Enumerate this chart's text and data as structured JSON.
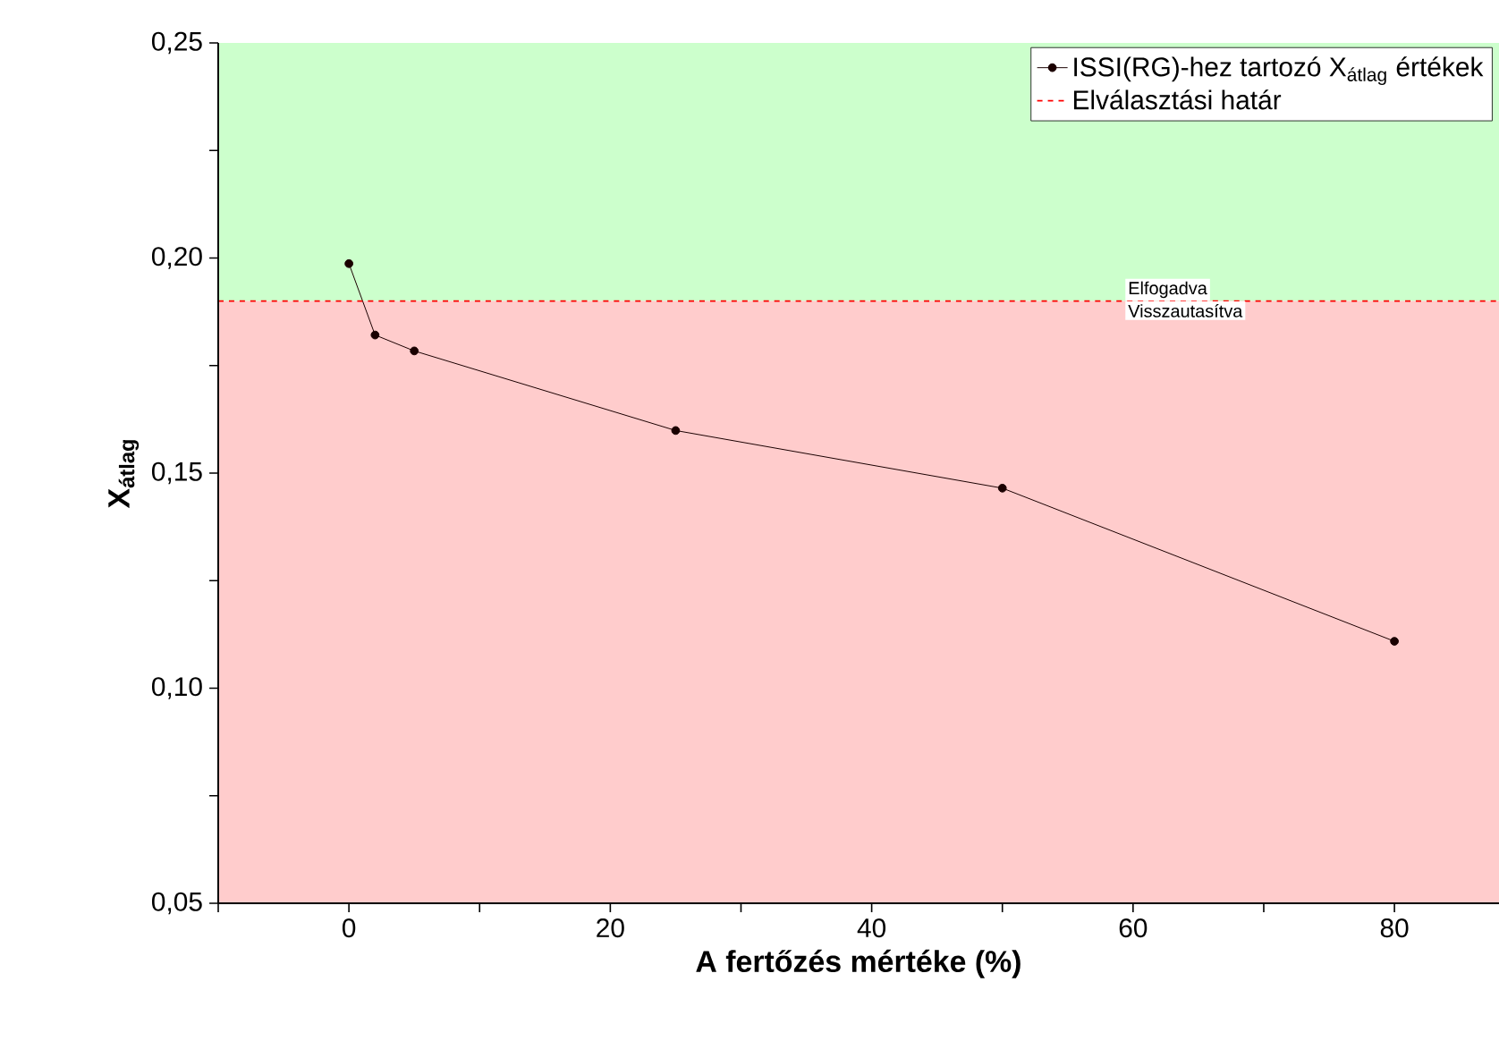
{
  "chart_data": {
    "type": "line",
    "xlabel": "A fertőzés mértéke (%)",
    "ylabel": "X$_{átlag}$",
    "x": [
      0,
      2,
      5,
      25,
      50,
      80
    ],
    "series": [
      {
        "name": "ISSI(RG)-hez tartozó X$_{átlag}$ értékek",
        "color": "#1a0000",
        "values": [
          0.1987,
          0.1821,
          0.1784,
          0.1599,
          0.1465,
          0.1109
        ]
      }
    ],
    "xlim": [
      -10,
      88
    ],
    "ylim": [
      0.05,
      0.25
    ],
    "xticks": [
      {
        "value": -10,
        "label": null
      },
      0,
      {
        "value": 10,
        "label": null
      },
      20,
      {
        "value": 30,
        "label": null
      },
      40,
      {
        "value": 50,
        "label": null
      },
      60,
      {
        "value": 70,
        "label": null
      },
      80
    ],
    "yticks": [
      {
        "value": 0.05,
        "label": "0,05"
      },
      {
        "value": 0.075,
        "label": null
      },
      {
        "value": 0.1,
        "label": "0,10"
      },
      {
        "value": 0.125,
        "label": null
      },
      {
        "value": 0.15,
        "label": "0,15"
      },
      {
        "value": 0.175,
        "label": null
      },
      {
        "value": 0.2,
        "label": "0,20"
      },
      {
        "value": 0.225,
        "label": null
      },
      {
        "value": 0.25,
        "label": "0,25"
      }
    ],
    "ref_lines": [
      {
        "axis": "y",
        "value": 0.19,
        "label": "Elválasztási határ",
        "color": "#ff0000",
        "line_style": "dashed"
      }
    ],
    "bands": [
      {
        "axis": "y",
        "from": 0.19,
        "to": 0.25,
        "label": "Elfogadva",
        "color": "#ccffcc"
      },
      {
        "axis": "y",
        "from": 0.05,
        "to": 0.19,
        "label": "Visszautasítva",
        "color": "#ffcccc"
      }
    ],
    "marker": "circle",
    "line_style": "solid",
    "legend": "top right"
  }
}
